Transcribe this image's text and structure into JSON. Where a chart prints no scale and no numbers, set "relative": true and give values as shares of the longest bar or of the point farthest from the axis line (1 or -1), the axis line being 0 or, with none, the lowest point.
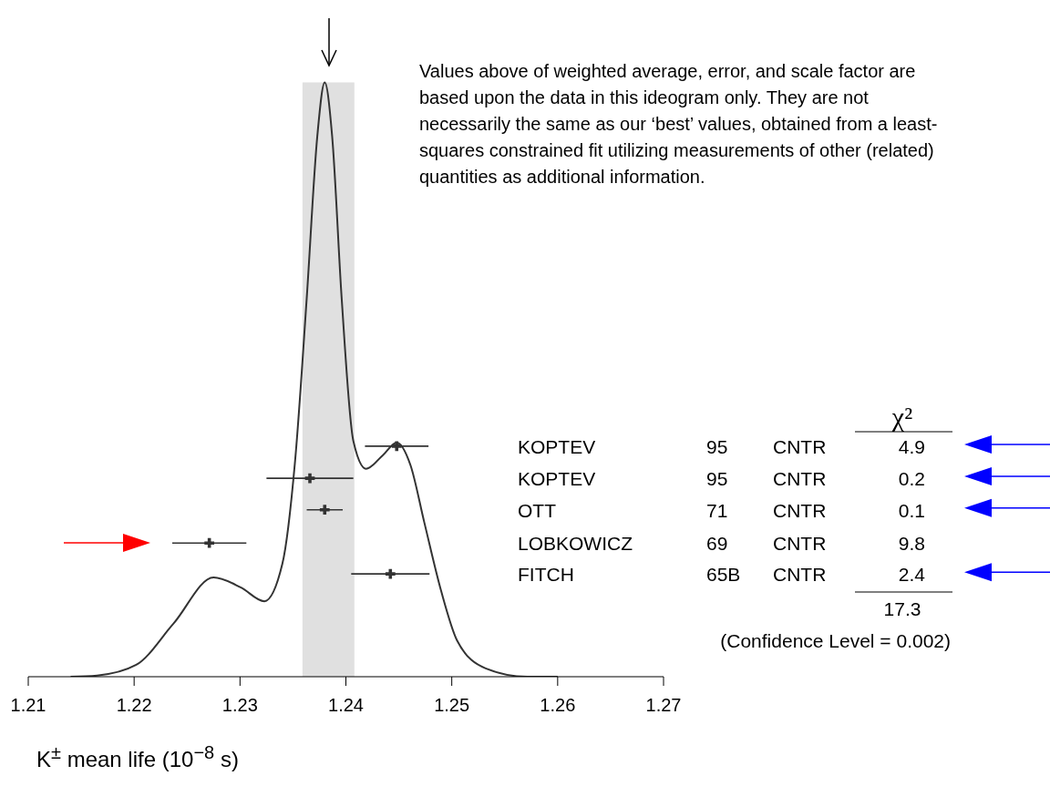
{
  "chart_data": {
    "type": "line",
    "relative": true,
    "xlabel": "K$^{±}$ mean life (10$^{−8}$ s)",
    "xlim": [
      1.21,
      1.27
    ],
    "xticks": [
      1.21,
      1.22,
      1.23,
      1.24,
      1.25,
      1.26,
      1.27
    ],
    "bands": [
      {
        "axis": "x",
        "from": 1.2359,
        "to": 1.2408,
        "color": "#e0e0e0"
      }
    ],
    "annotations": [
      "Values above of weighted average, error, and scale factor are based upon the data in this ideogram only.  They are not necessarily the same as our ‘best’ values, obtained from a least-squares constrained fit utilizing measurements of other (related) quantities as additional information.",
      "χ²",
      "KOPTEV",
      "95",
      "CNTR",
      "4.9",
      "KOPTEV",
      "95",
      "CNTR",
      "0.2",
      "OTT",
      "71",
      "CNTR",
      "0.1",
      "LOBKOWICZ",
      "69",
      "CNTR",
      "9.8",
      "FITCH",
      "65B",
      "CNTR",
      "2.4",
      "17.3",
      "(Confidence Level = 0.002)"
    ],
    "series": [
      {
        "color": "#333333",
        "marker": "none",
        "x": [
          1.214,
          1.2165,
          1.2202,
          1.2237,
          1.2275,
          1.2301,
          1.2323,
          1.234,
          1.2352,
          1.2363,
          1.2373,
          1.238,
          1.2387,
          1.2396,
          1.2407,
          1.2419,
          1.2435,
          1.2448,
          1.2461,
          1.2474,
          1.249,
          1.2505,
          1.2532,
          1.2571,
          1.26
        ],
        "values": [
          0,
          0.002,
          0.02,
          0.089,
          0.167,
          0.15,
          0.127,
          0.19,
          0.363,
          0.637,
          0.91,
          1,
          0.91,
          0.637,
          0.397,
          0.35,
          0.373,
          0.394,
          0.356,
          0.26,
          0.144,
          0.061,
          0.014,
          0,
          0
        ]
      },
      {
        "type": "scatter",
        "color": "#333333",
        "marker": "cross",
        "x": [
          1.2448,
          1.2366,
          1.238,
          1.2271,
          1.2442
        ],
        "values": [
          0.388,
          0.334,
          0.281,
          0.225,
          0.173
        ],
        "xerrors": [
          0.003,
          0.0041,
          0.0017,
          0.0035,
          0.0037
        ]
      }
    ]
  }
}
